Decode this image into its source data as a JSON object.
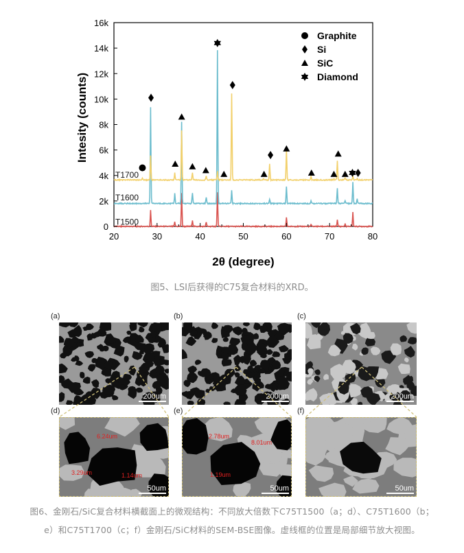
{
  "chart_data": {
    "type": "line",
    "xlabel": "2θ (degree)",
    "ylabel": "Intesity (counts)",
    "xlim": [
      20,
      80
    ],
    "ylim": [
      0,
      16000
    ],
    "x_ticks": [
      "20",
      "30",
      "40",
      "50",
      "60",
      "70",
      "80"
    ],
    "y_ticks": [
      "0",
      "2k",
      "4k",
      "6k",
      "8k",
      "10k",
      "12k",
      "14k",
      "16k"
    ],
    "legend": {
      "placement": "top-right",
      "entries": [
        {
          "marker": "circle",
          "label": "Graphite"
        },
        {
          "marker": "diamond",
          "label": "Si"
        },
        {
          "marker": "triangle",
          "label": "SiC"
        },
        {
          "marker": "star",
          "label": "Diamond"
        }
      ]
    },
    "series": [
      {
        "name": "T1500",
        "color": "#d9534f",
        "baseline": 0,
        "peaks": [
          [
            28.5,
            1250
          ],
          [
            34.1,
            350
          ],
          [
            35.7,
            2600
          ],
          [
            38.2,
            500
          ],
          [
            41.4,
            350
          ],
          [
            44.0,
            2700
          ],
          [
            60.0,
            700
          ],
          [
            65.7,
            150
          ],
          [
            71.8,
            500
          ],
          [
            73.6,
            200
          ],
          [
            75.4,
            1100
          ]
        ]
      },
      {
        "name": "T1600",
        "color": "#6bbccd",
        "baseline": 1800,
        "peaks": [
          [
            28.5,
            7600
          ],
          [
            34.1,
            800
          ],
          [
            35.7,
            6400
          ],
          [
            38.2,
            850
          ],
          [
            41.4,
            500
          ],
          [
            44.0,
            12000
          ],
          [
            47.3,
            1000
          ],
          [
            56.1,
            350
          ],
          [
            60.0,
            1300
          ],
          [
            65.7,
            250
          ],
          [
            71.8,
            1200
          ],
          [
            73.6,
            250
          ],
          [
            75.4,
            1700
          ],
          [
            76.4,
            400
          ]
        ]
      },
      {
        "name": "T1700",
        "color": "#f2d06b",
        "baseline": 3650,
        "peaks": [
          [
            26.6,
            150
          ],
          [
            28.5,
            1900
          ],
          [
            34.1,
            550
          ],
          [
            35.7,
            3900
          ],
          [
            38.2,
            600
          ],
          [
            41.4,
            300
          ],
          [
            44.0,
            700
          ],
          [
            47.3,
            6800
          ],
          [
            54.7,
            100
          ],
          [
            56.1,
            1300
          ],
          [
            60.0,
            2400
          ],
          [
            65.7,
            250
          ],
          [
            71.0,
            100
          ],
          [
            71.8,
            1500
          ],
          [
            73.6,
            150
          ],
          [
            75.4,
            300
          ],
          [
            76.4,
            100
          ]
        ]
      }
    ],
    "annotations": [
      {
        "marker": "circle",
        "x": 26.6,
        "y": 4600
      },
      {
        "marker": "diamond",
        "x": 28.6,
        "y": 10100
      },
      {
        "marker": "triangle",
        "x": 34.2,
        "y": 4900
      },
      {
        "marker": "triangle",
        "x": 35.7,
        "y": 8600
      },
      {
        "marker": "triangle",
        "x": 38.2,
        "y": 4700
      },
      {
        "marker": "triangle",
        "x": 41.3,
        "y": 4400
      },
      {
        "marker": "star",
        "x": 44.0,
        "y": 14400
      },
      {
        "marker": "triangle",
        "x": 45.5,
        "y": 4100
      },
      {
        "marker": "diamond",
        "x": 47.5,
        "y": 11100
      },
      {
        "marker": "triangle",
        "x": 54.8,
        "y": 4100
      },
      {
        "marker": "diamond",
        "x": 56.3,
        "y": 5600
      },
      {
        "marker": "triangle",
        "x": 60.0,
        "y": 6100
      },
      {
        "marker": "triangle",
        "x": 65.8,
        "y": 4200
      },
      {
        "marker": "triangle",
        "x": 71.0,
        "y": 4100
      },
      {
        "marker": "triangle",
        "x": 72.0,
        "y": 5700
      },
      {
        "marker": "triangle",
        "x": 73.6,
        "y": 4100
      },
      {
        "marker": "star",
        "x": 75.3,
        "y": 4200
      },
      {
        "marker": "diamond",
        "x": 76.6,
        "y": 4200
      }
    ],
    "series_labels": [
      {
        "text": "T1700",
        "y": 4050
      },
      {
        "text": "T1600",
        "y": 2250
      },
      {
        "text": "T1500",
        "y": 350
      }
    ]
  },
  "caption5": "图5、LSI后获得的C75复合材料的XRD。",
  "sem": {
    "panels": [
      {
        "label": "(a)",
        "scale": "200um"
      },
      {
        "label": "(b)",
        "scale": "200um"
      },
      {
        "label": "(c)",
        "scale": "200um"
      },
      {
        "label": "(d)",
        "scale": "50um"
      },
      {
        "label": "(e)",
        "scale": "50um"
      },
      {
        "label": "(f)",
        "scale": "50um"
      }
    ],
    "d_annotations": [
      "6.24um",
      "3.29um",
      "1.14um"
    ],
    "e_annotations": [
      "2.78um",
      "8.01um",
      "1.19um"
    ]
  },
  "caption6_line1": "图6、金刚石/SiC复合材料横截面上的微观结构：不同放大倍数下C75T1500（a；d）、C75T1600（b；",
  "caption6_line2": "e）和C75T1700（c；f）金刚石/SiC材料的SEM-BSE图像。虚线框的位置是局部细节放大视图。"
}
